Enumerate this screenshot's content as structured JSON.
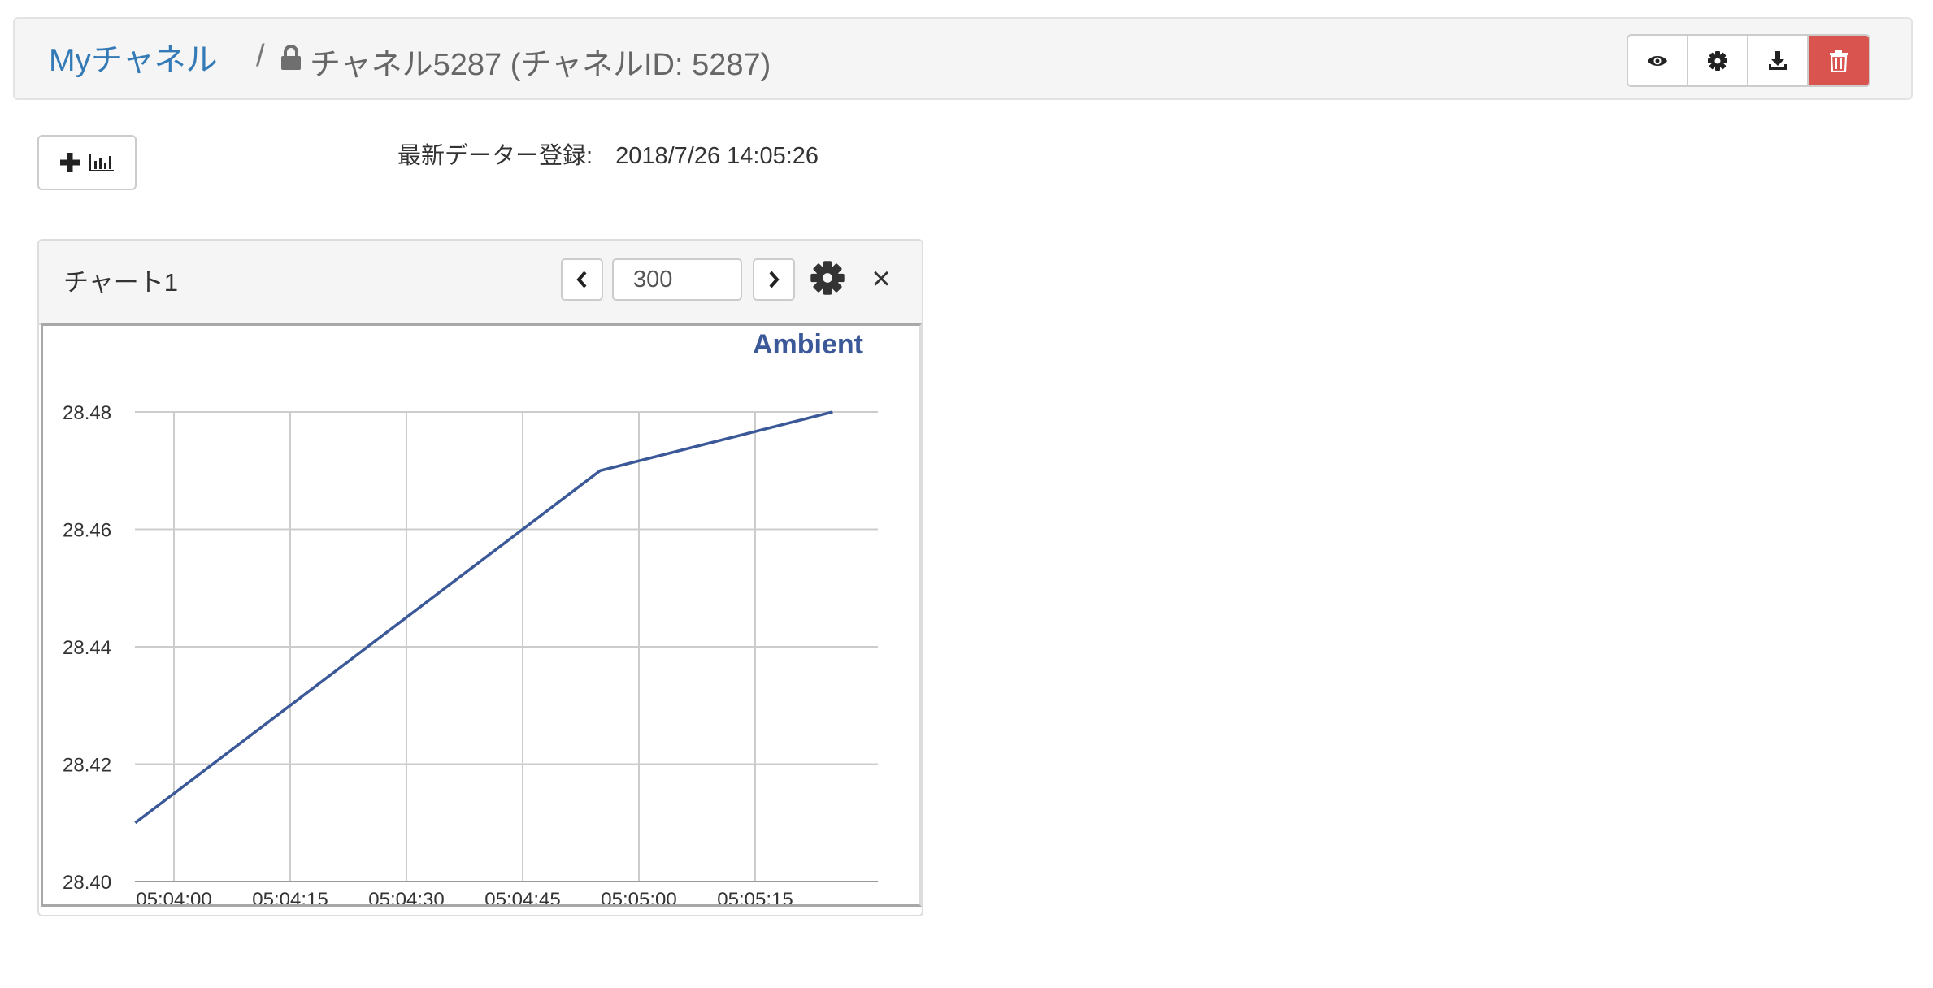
{
  "header": {
    "root_link": "Myチャネル",
    "separator": "/",
    "current": "チャネル5287 (チャネルID: 5287)",
    "buttons": [
      {
        "icon": "eye-icon"
      },
      {
        "icon": "gear-icon"
      },
      {
        "icon": "download-icon"
      },
      {
        "icon": "trash-icon",
        "color": "#d9534f"
      }
    ]
  },
  "toolbar": {
    "add_chart_icons": [
      "plus-icon",
      "bar-chart-icon"
    ]
  },
  "latest_data": {
    "label": "最新データー登録:",
    "value": "2018/7/26 14:05:26"
  },
  "chart_panel": {
    "title": "チャート1",
    "count_value": "300",
    "prev_icon": "chevron-left-icon",
    "next_icon": "chevron-right-icon",
    "settings_icon": "gear-icon",
    "close_glyph": "×"
  },
  "chart_data": {
    "type": "line",
    "brand": "Ambient",
    "x_ticks": [
      "05:04:00",
      "05:04:15",
      "05:04:30",
      "05:04:45",
      "05:05:00",
      "05:05:15"
    ],
    "y_ticks": [
      "28.48",
      "28.46",
      "28.44",
      "28.42",
      "28.40"
    ],
    "ylim": [
      28.4,
      28.48
    ],
    "grid": true,
    "legend": "bottom",
    "series": [
      {
        "color": "#3b5998",
        "points": [
          {
            "t": "05:03:55",
            "y": 28.41
          },
          {
            "t": "05:04:55",
            "y": 28.47
          },
          {
            "t": "05:05:25",
            "y": 28.48
          }
        ]
      }
    ],
    "colors": {
      "line": "#3b5998",
      "grid": "#cccccc",
      "brand": "#3b5998"
    }
  }
}
